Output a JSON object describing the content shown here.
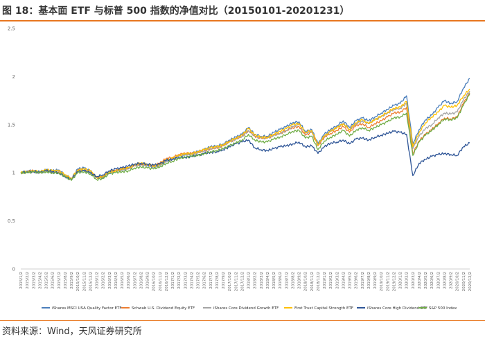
{
  "header": {
    "title": "图 18：基本面 ETF 与标普 500 指数的净值对比（20150101-20201231）"
  },
  "footer": {
    "source": "资料来源：Wind，天风证券研究所"
  },
  "chart_data": {
    "type": "line",
    "title": "图 18：基本面 ETF 与标普 500 指数的净值对比（20150101-20201231）",
    "xlabel": "",
    "ylabel": "",
    "ylim": [
      0,
      2.5
    ],
    "yticks": [
      "0",
      "0.5",
      "1",
      "1.5",
      "2",
      "2.5"
    ],
    "grid": false,
    "legend_position": "bottom",
    "x": [
      "2015/1/2",
      "2015/2/2",
      "2015/3/2",
      "2015/4/2",
      "2015/5/2",
      "2015/6/2",
      "2015/7/2",
      "2015/8/2",
      "2015/9/2",
      "2015/10/2",
      "2015/11/2",
      "2015/12/2",
      "2016/1/2",
      "2016/2/2",
      "2016/3/2",
      "2016/4/2",
      "2016/5/2",
      "2016/6/2",
      "2016/7/2",
      "2016/8/2",
      "2016/9/2",
      "2016/10/2",
      "2016/11/2",
      "2016/12/2",
      "2017/1/2",
      "2017/2/2",
      "2017/3/2",
      "2017/4/2",
      "2017/5/2",
      "2017/6/2",
      "2017/7/2",
      "2017/8/2",
      "2017/9/2",
      "2017/10/2",
      "2017/11/2",
      "2017/12/2",
      "2018/1/2",
      "2018/2/2",
      "2018/3/2",
      "2018/4/2",
      "2018/5/2",
      "2018/6/2",
      "2018/7/2",
      "2018/8/2",
      "2018/9/2",
      "2018/10/2",
      "2018/11/2",
      "2018/12/2",
      "2019/1/2",
      "2019/2/2",
      "2019/3/2",
      "2019/4/2",
      "2019/5/2",
      "2019/6/2",
      "2019/7/2",
      "2019/8/2",
      "2019/9/2",
      "2019/10/2",
      "2019/11/2",
      "2019/12/2",
      "2020/1/2",
      "2020/2/2",
      "2020/3/2",
      "2020/4/2",
      "2020/5/2",
      "2020/6/2",
      "2020/7/2",
      "2020/8/2",
      "2020/9/2",
      "2020/10/2",
      "2020/11/2",
      "2020/12/2"
    ],
    "series": [
      {
        "name": "iShares MSCI USA Quality Factor ETF",
        "color": "#4A7EBB",
        "values": [
          1.0,
          1.02,
          1.02,
          1.01,
          1.03,
          1.02,
          1.03,
          0.98,
          0.94,
          1.04,
          1.05,
          1.02,
          0.95,
          0.95,
          1.0,
          1.02,
          1.03,
          1.04,
          1.08,
          1.09,
          1.08,
          1.06,
          1.08,
          1.12,
          1.14,
          1.18,
          1.19,
          1.2,
          1.22,
          1.24,
          1.27,
          1.28,
          1.3,
          1.34,
          1.37,
          1.4,
          1.47,
          1.4,
          1.38,
          1.38,
          1.42,
          1.45,
          1.48,
          1.52,
          1.53,
          1.43,
          1.45,
          1.3,
          1.4,
          1.45,
          1.49,
          1.54,
          1.47,
          1.54,
          1.57,
          1.54,
          1.58,
          1.62,
          1.66,
          1.7,
          1.72,
          1.8,
          1.3,
          1.45,
          1.55,
          1.6,
          1.68,
          1.75,
          1.72,
          1.74,
          1.88,
          1.98
        ]
      },
      {
        "name": "Schwab U.S. Dividend Equity ETF",
        "color": "#ED7D31",
        "values": [
          1.0,
          1.01,
          1.02,
          1.0,
          1.02,
          1.01,
          1.01,
          0.97,
          0.93,
          1.02,
          1.03,
          1.01,
          0.95,
          0.96,
          1.01,
          1.02,
          1.04,
          1.05,
          1.08,
          1.09,
          1.08,
          1.07,
          1.1,
          1.15,
          1.16,
          1.19,
          1.2,
          1.2,
          1.21,
          1.23,
          1.25,
          1.26,
          1.28,
          1.32,
          1.35,
          1.38,
          1.44,
          1.38,
          1.36,
          1.36,
          1.39,
          1.41,
          1.44,
          1.47,
          1.48,
          1.39,
          1.42,
          1.28,
          1.37,
          1.41,
          1.44,
          1.48,
          1.42,
          1.49,
          1.51,
          1.47,
          1.51,
          1.54,
          1.58,
          1.62,
          1.63,
          1.68,
          1.2,
          1.33,
          1.4,
          1.45,
          1.51,
          1.57,
          1.56,
          1.58,
          1.72,
          1.83
        ]
      },
      {
        "name": "iShares Core Dividend Growth ETF",
        "color": "#A5A5A5",
        "values": [
          1.0,
          1.01,
          1.01,
          1.0,
          1.02,
          1.01,
          1.02,
          0.97,
          0.93,
          1.02,
          1.03,
          1.01,
          0.95,
          0.96,
          1.01,
          1.02,
          1.03,
          1.05,
          1.08,
          1.09,
          1.08,
          1.06,
          1.08,
          1.12,
          1.14,
          1.17,
          1.19,
          1.19,
          1.21,
          1.23,
          1.25,
          1.26,
          1.28,
          1.32,
          1.35,
          1.38,
          1.44,
          1.38,
          1.36,
          1.36,
          1.39,
          1.41,
          1.44,
          1.48,
          1.5,
          1.41,
          1.43,
          1.29,
          1.38,
          1.43,
          1.47,
          1.51,
          1.45,
          1.51,
          1.54,
          1.51,
          1.55,
          1.58,
          1.62,
          1.66,
          1.67,
          1.72,
          1.25,
          1.38,
          1.46,
          1.5,
          1.57,
          1.62,
          1.61,
          1.63,
          1.76,
          1.85
        ]
      },
      {
        "name": "First Trust Capital Strength ETF",
        "color": "#FFC000",
        "values": [
          1.0,
          1.01,
          1.02,
          1.01,
          1.03,
          1.02,
          1.02,
          0.98,
          0.94,
          1.03,
          1.04,
          1.02,
          0.95,
          0.96,
          1.01,
          1.02,
          1.04,
          1.05,
          1.08,
          1.1,
          1.09,
          1.07,
          1.09,
          1.13,
          1.15,
          1.18,
          1.2,
          1.2,
          1.22,
          1.24,
          1.26,
          1.27,
          1.29,
          1.33,
          1.36,
          1.39,
          1.46,
          1.39,
          1.37,
          1.37,
          1.4,
          1.43,
          1.46,
          1.5,
          1.51,
          1.42,
          1.44,
          1.29,
          1.38,
          1.43,
          1.47,
          1.51,
          1.45,
          1.52,
          1.55,
          1.51,
          1.55,
          1.59,
          1.63,
          1.67,
          1.68,
          1.74,
          1.27,
          1.42,
          1.52,
          1.58,
          1.63,
          1.7,
          1.68,
          1.7,
          1.8,
          1.87
        ]
      },
      {
        "name": "iShares Core High Dividend ETF",
        "color": "#2E5597",
        "values": [
          1.0,
          1.01,
          1.01,
          1.0,
          1.02,
          1.01,
          1.0,
          0.96,
          0.93,
          1.01,
          1.02,
          1.0,
          0.96,
          0.98,
          1.02,
          1.04,
          1.05,
          1.07,
          1.09,
          1.1,
          1.09,
          1.08,
          1.09,
          1.13,
          1.14,
          1.16,
          1.16,
          1.17,
          1.18,
          1.2,
          1.21,
          1.22,
          1.24,
          1.27,
          1.3,
          1.32,
          1.34,
          1.26,
          1.24,
          1.23,
          1.25,
          1.27,
          1.28,
          1.3,
          1.32,
          1.27,
          1.28,
          1.2,
          1.27,
          1.31,
          1.32,
          1.34,
          1.3,
          1.35,
          1.36,
          1.34,
          1.37,
          1.39,
          1.41,
          1.43,
          1.42,
          1.4,
          0.97,
          1.1,
          1.14,
          1.17,
          1.19,
          1.2,
          1.19,
          1.18,
          1.27,
          1.31
        ]
      },
      {
        "name": "S&P 500 Index",
        "color": "#70AD47",
        "values": [
          1.0,
          1.0,
          1.01,
          1.0,
          1.01,
          1.0,
          1.0,
          0.96,
          0.92,
          1.0,
          1.01,
          0.99,
          0.93,
          0.94,
          0.99,
          1.0,
          1.01,
          1.02,
          1.05,
          1.06,
          1.05,
          1.04,
          1.06,
          1.1,
          1.12,
          1.15,
          1.16,
          1.17,
          1.18,
          1.2,
          1.22,
          1.23,
          1.25,
          1.28,
          1.31,
          1.34,
          1.4,
          1.34,
          1.32,
          1.32,
          1.35,
          1.37,
          1.4,
          1.43,
          1.44,
          1.36,
          1.38,
          1.24,
          1.33,
          1.37,
          1.4,
          1.44,
          1.38,
          1.44,
          1.47,
          1.44,
          1.47,
          1.5,
          1.53,
          1.57,
          1.58,
          1.62,
          1.18,
          1.32,
          1.39,
          1.44,
          1.5,
          1.56,
          1.55,
          1.57,
          1.7,
          1.82
        ]
      }
    ]
  }
}
